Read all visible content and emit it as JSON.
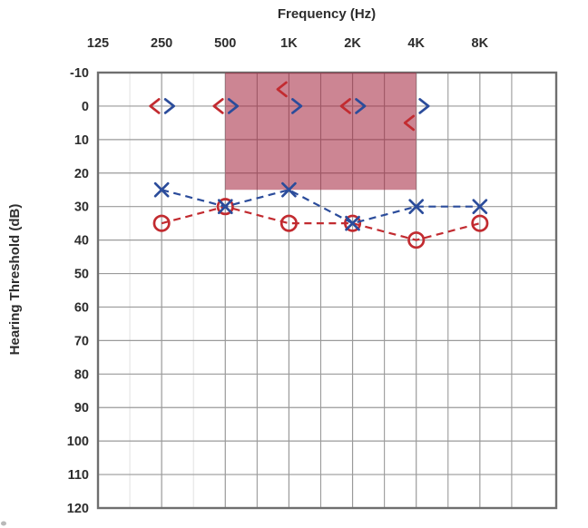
{
  "page": {
    "background": "#ffffff"
  },
  "chart_data": {
    "type": "line",
    "chart_kind": "audiogram",
    "title": "Frequency (Hz)",
    "xlabel": "Frequency (Hz)",
    "ylabel": "Hearing Threshold (dB)",
    "x_categories": [
      "125",
      "250",
      "500",
      "1K",
      "2K",
      "4K",
      "8K"
    ],
    "y_ticks": [
      -10,
      0,
      10,
      20,
      30,
      40,
      50,
      60,
      70,
      80,
      90,
      100,
      110,
      120
    ],
    "ylim": [
      -10,
      120
    ],
    "y_inverted": true,
    "grid": true,
    "legend_position": "none",
    "colors": {
      "right_ear": "#C22B30",
      "left_ear": "#2B4C9B",
      "grid_line": "#9a9a9a",
      "grid_line_faint": "#e2e2e2",
      "plot_border": "#6f6f6f",
      "shaded_region": "rgba(163, 33, 58, 0.55)"
    },
    "series": [
      {
        "name": "right-ear-air-conduction",
        "marker": "circle",
        "color": "#C22B30",
        "line": "dashed",
        "x": [
          "250",
          "500",
          "1K",
          "2K",
          "4K",
          "8K"
        ],
        "values": [
          35,
          30,
          35,
          35,
          40,
          35
        ]
      },
      {
        "name": "left-ear-air-conduction",
        "marker": "x",
        "color": "#2B4C9B",
        "line": "dashed",
        "x": [
          "250",
          "500",
          "1K",
          "2K",
          "4K",
          "8K"
        ],
        "values": [
          25,
          30,
          25,
          35,
          30,
          30
        ]
      },
      {
        "name": "right-ear-bone-conduction",
        "marker": "less-than",
        "color": "#C22B30",
        "line": "none",
        "x": [
          "250",
          "500",
          "1K",
          "2K",
          "4K"
        ],
        "values": [
          0,
          0,
          -5,
          0,
          5
        ]
      },
      {
        "name": "left-ear-bone-conduction",
        "marker": "greater-than",
        "color": "#2B4C9B",
        "line": "none",
        "x": [
          "250",
          "500",
          "1K",
          "2K",
          "4K"
        ],
        "values": [
          0,
          0,
          0,
          0,
          0
        ]
      }
    ],
    "shaded_region": {
      "x_from": "500",
      "x_to": "4K",
      "y_from": -10,
      "y_to": 25
    }
  }
}
